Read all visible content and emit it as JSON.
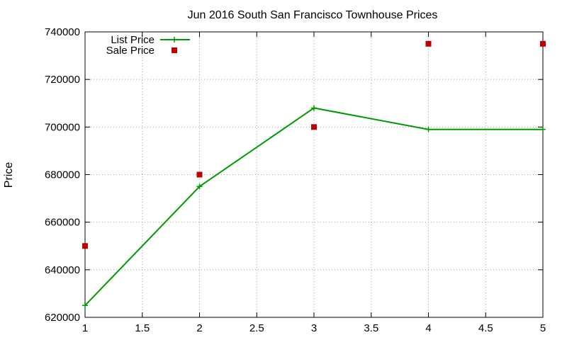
{
  "chart_data": {
    "type": "line",
    "title": "Jun 2016 South San Francisco Townhouse Prices",
    "xlabel": "",
    "ylabel": "Price",
    "xlim": [
      1,
      5
    ],
    "ylim": [
      620000,
      740000
    ],
    "xticks": [
      "1",
      "1.5",
      "2",
      "2.5",
      "3",
      "3.5",
      "4",
      "4.5",
      "5"
    ],
    "yticks": [
      "620000",
      "640000",
      "660000",
      "680000",
      "700000",
      "720000",
      "740000"
    ],
    "grid": true,
    "legend_position": "top-left",
    "series": [
      {
        "name": "List Price",
        "style": "line-with-plus-markers",
        "color": "#009900",
        "x": [
          1,
          2,
          3,
          4,
          5
        ],
        "y": [
          625000,
          675000,
          708000,
          699000,
          699000
        ]
      },
      {
        "name": "Sale Price",
        "style": "square-markers",
        "color": "#c00000",
        "x": [
          1,
          2,
          3,
          4,
          5
        ],
        "y": [
          650000,
          680000,
          700000,
          735000,
          735000
        ]
      }
    ]
  }
}
